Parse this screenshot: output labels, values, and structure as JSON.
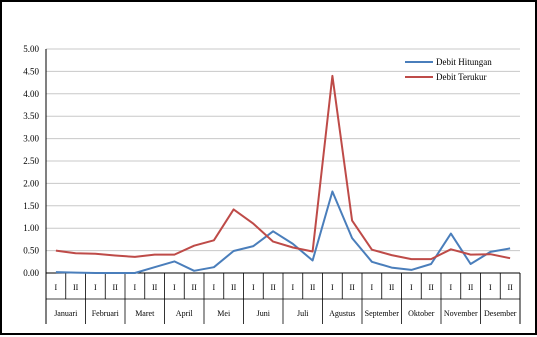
{
  "chart_data": {
    "type": "line",
    "title": "",
    "xlabel": "",
    "ylabel": "",
    "ylim": [
      0,
      5
    ],
    "yticks": [
      "0.00",
      "0.50",
      "1.00",
      "1.50",
      "2.00",
      "2.50",
      "3.00",
      "3.50",
      "4.00",
      "4.50",
      "5.00"
    ],
    "grid": true,
    "legend_position": "top-right",
    "months": [
      "Januari",
      "Februari",
      "Maret",
      "April",
      "Mei",
      "Juni",
      "Juli",
      "Agustus",
      "September",
      "Oktober",
      "November",
      "Desember"
    ],
    "periods": [
      "I",
      "II",
      "I",
      "II",
      "I",
      "II",
      "I",
      "II",
      "I",
      "II",
      "I",
      "II",
      "I",
      "II",
      "I",
      "II",
      "I",
      "II",
      "I",
      "II",
      "I",
      "II",
      "I",
      "II"
    ],
    "series": [
      {
        "name": "Debit Hitungan",
        "color": "#4a7ebb",
        "values": [
          0.02,
          0.01,
          0.0,
          0.0,
          0.0,
          0.13,
          0.26,
          0.05,
          0.13,
          0.49,
          0.6,
          0.93,
          0.65,
          0.28,
          1.82,
          0.78,
          0.25,
          0.12,
          0.07,
          0.2,
          0.88,
          0.2,
          0.47,
          0.55
        ]
      },
      {
        "name": "Debit Terukur",
        "color": "#be4b48",
        "values": [
          0.5,
          0.44,
          0.43,
          0.39,
          0.36,
          0.41,
          0.41,
          0.61,
          0.73,
          1.42,
          1.1,
          0.7,
          0.57,
          0.48,
          4.4,
          1.17,
          0.52,
          0.4,
          0.31,
          0.31,
          0.53,
          0.41,
          0.42,
          0.33
        ]
      }
    ]
  }
}
